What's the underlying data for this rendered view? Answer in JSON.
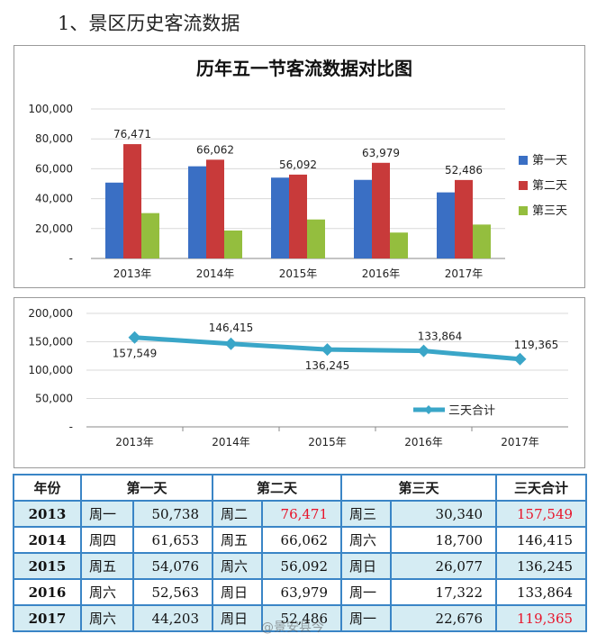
{
  "page": {
    "heading": "1、景区历史客流数据"
  },
  "chart_data": [
    {
      "type": "bar",
      "title": "历年五一节客流数据对比图",
      "categories": [
        "2013年",
        "2014年",
        "2015年",
        "2016年",
        "2017年"
      ],
      "series": [
        {
          "name": "第一天",
          "values": [
            50738,
            61653,
            54076,
            52563,
            44203
          ],
          "color": "#3a6fc4"
        },
        {
          "name": "第二天",
          "values": [
            76471,
            66062,
            56092,
            63979,
            52486
          ],
          "color": "#c83a3a"
        },
        {
          "name": "第三天",
          "values": [
            30340,
            18700,
            26077,
            17322,
            22676
          ],
          "color": "#94be3e"
        }
      ],
      "data_labels": [
        "76,471",
        "66,062",
        "56,092",
        "63,979",
        "52,486"
      ],
      "y_ticks": [
        "-",
        "20,000",
        "40,000",
        "60,000",
        "80,000",
        "100,000"
      ],
      "ylim": [
        0,
        100000
      ],
      "grid": true,
      "legend": "right"
    },
    {
      "type": "line",
      "categories": [
        "2013年",
        "2014年",
        "2015年",
        "2016年",
        "2017年"
      ],
      "series": [
        {
          "name": "三天合计",
          "values": [
            157549,
            146415,
            136245,
            133864,
            119365
          ],
          "color": "#3aa6c8"
        }
      ],
      "data_labels": [
        "157,549",
        "146,415",
        "136,245",
        "133,864",
        "119,365"
      ],
      "y_ticks": [
        "-",
        "50,000",
        "100,000",
        "150,000",
        "200,000"
      ],
      "ylim": [
        0,
        200000
      ],
      "grid": true,
      "legend": "inside-bottom-right"
    }
  ],
  "table": {
    "headers": [
      "年份",
      "第一天",
      "第二天",
      "第三天",
      "三天合计"
    ],
    "rows": [
      {
        "year": "2013",
        "d1_wd": "周一",
        "d1": "50,738",
        "d2_wd": "周二",
        "d2": "76,471",
        "d3_wd": "周三",
        "d3": "30,340",
        "total": "157,549"
      },
      {
        "year": "2014",
        "d1_wd": "周四",
        "d1": "61,653",
        "d2_wd": "周五",
        "d2": "66,062",
        "d3_wd": "周六",
        "d3": "18,700",
        "total": "146,415"
      },
      {
        "year": "2015",
        "d1_wd": "周五",
        "d1": "54,076",
        "d2_wd": "周六",
        "d2": "56,092",
        "d3_wd": "周日",
        "d3": "26,077",
        "total": "136,245"
      },
      {
        "year": "2016",
        "d1_wd": "周六",
        "d1": "52,563",
        "d2_wd": "周日",
        "d2": "63,979",
        "d3_wd": "周一",
        "d3": "17,322",
        "total": "133,864"
      },
      {
        "year": "2017",
        "d1_wd": "周六",
        "d1": "44,203",
        "d2_wd": "周日",
        "d2": "52,486",
        "d3_wd": "周一",
        "d3": "22,676",
        "total": "119,365"
      }
    ],
    "highlight_color": "#e8142a"
  },
  "watermark": "@景安县今"
}
